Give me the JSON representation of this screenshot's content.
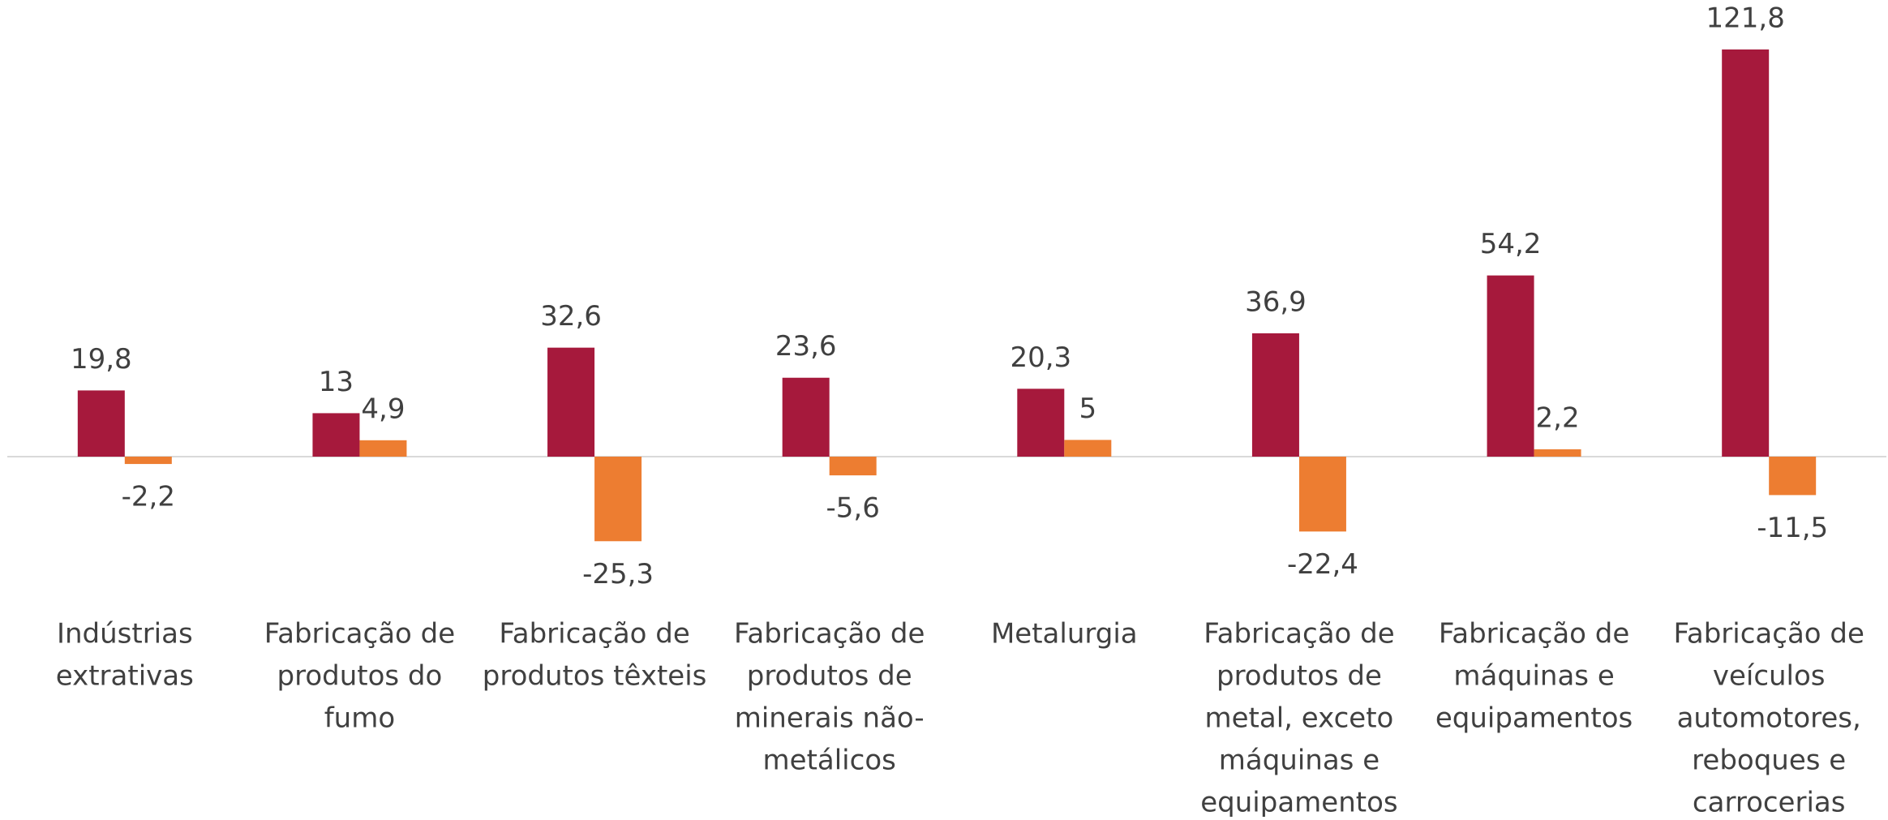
{
  "chart_data": {
    "type": "bar",
    "categories": [
      [
        "Indústrias",
        "extrativas"
      ],
      [
        "Fabricação de",
        "produtos do",
        "fumo"
      ],
      [
        "Fabricação de",
        "produtos têxteis"
      ],
      [
        "Fabricação de",
        "produtos de",
        "minerais não-",
        "metálicos"
      ],
      [
        "Metalurgia"
      ],
      [
        "Fabricação de",
        "produtos de",
        "metal, exceto",
        "máquinas e",
        "equipamentos"
      ],
      [
        "Fabricação de",
        "máquinas e",
        "equipamentos"
      ],
      [
        "Fabricação de",
        "veículos",
        "automotores,",
        "reboques e",
        "carrocerias"
      ]
    ],
    "series": [
      {
        "color": "#a6193c",
        "values": [
          19.8,
          13,
          32.6,
          23.6,
          20.3,
          36.9,
          54.2,
          121.8
        ],
        "value_labels": [
          "19,8",
          "13",
          "32,6",
          "23,6",
          "20,3",
          "36,9",
          "54,2",
          "121,8"
        ]
      },
      {
        "color": "#ed7d31",
        "values": [
          -2.2,
          4.9,
          -25.3,
          -5.6,
          5,
          -22.4,
          2.2,
          -11.5
        ],
        "value_labels": [
          "-2,2",
          "4,9",
          "-25,3",
          "-5,6",
          "5",
          "-22,4",
          "2,2",
          "-11,5"
        ]
      }
    ]
  }
}
